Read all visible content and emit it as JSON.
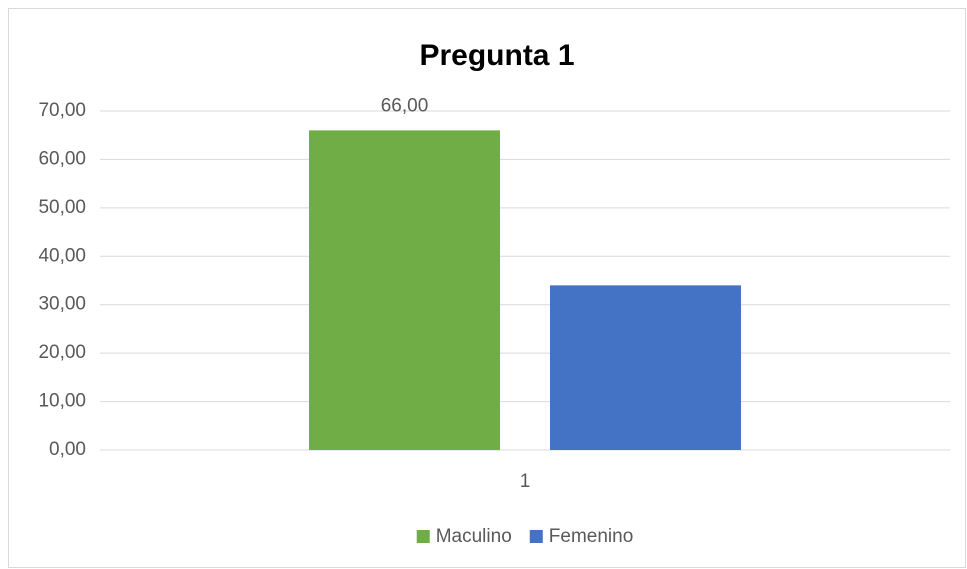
{
  "chart_data": {
    "type": "bar",
    "title": "Pregunta 1",
    "categories": [
      "1"
    ],
    "series": [
      {
        "name": "Maculino",
        "color": "#70ad47",
        "values": [
          66
        ],
        "value_labels": [
          "66,00"
        ]
      },
      {
        "name": "Femenino",
        "color": "#4472c4",
        "values": [
          34
        ]
      }
    ],
    "ylim": [
      0,
      70
    ],
    "yticks": [
      {
        "value": 0,
        "label": "0,00"
      },
      {
        "value": 10,
        "label": "10,00"
      },
      {
        "value": 20,
        "label": "20,00"
      },
      {
        "value": 30,
        "label": "30,00"
      },
      {
        "value": 40,
        "label": "40,00"
      },
      {
        "value": 50,
        "label": "50,00"
      },
      {
        "value": 60,
        "label": "60,00"
      },
      {
        "value": 70,
        "label": "70,00"
      }
    ],
    "grid": true,
    "legend": "bottom"
  }
}
